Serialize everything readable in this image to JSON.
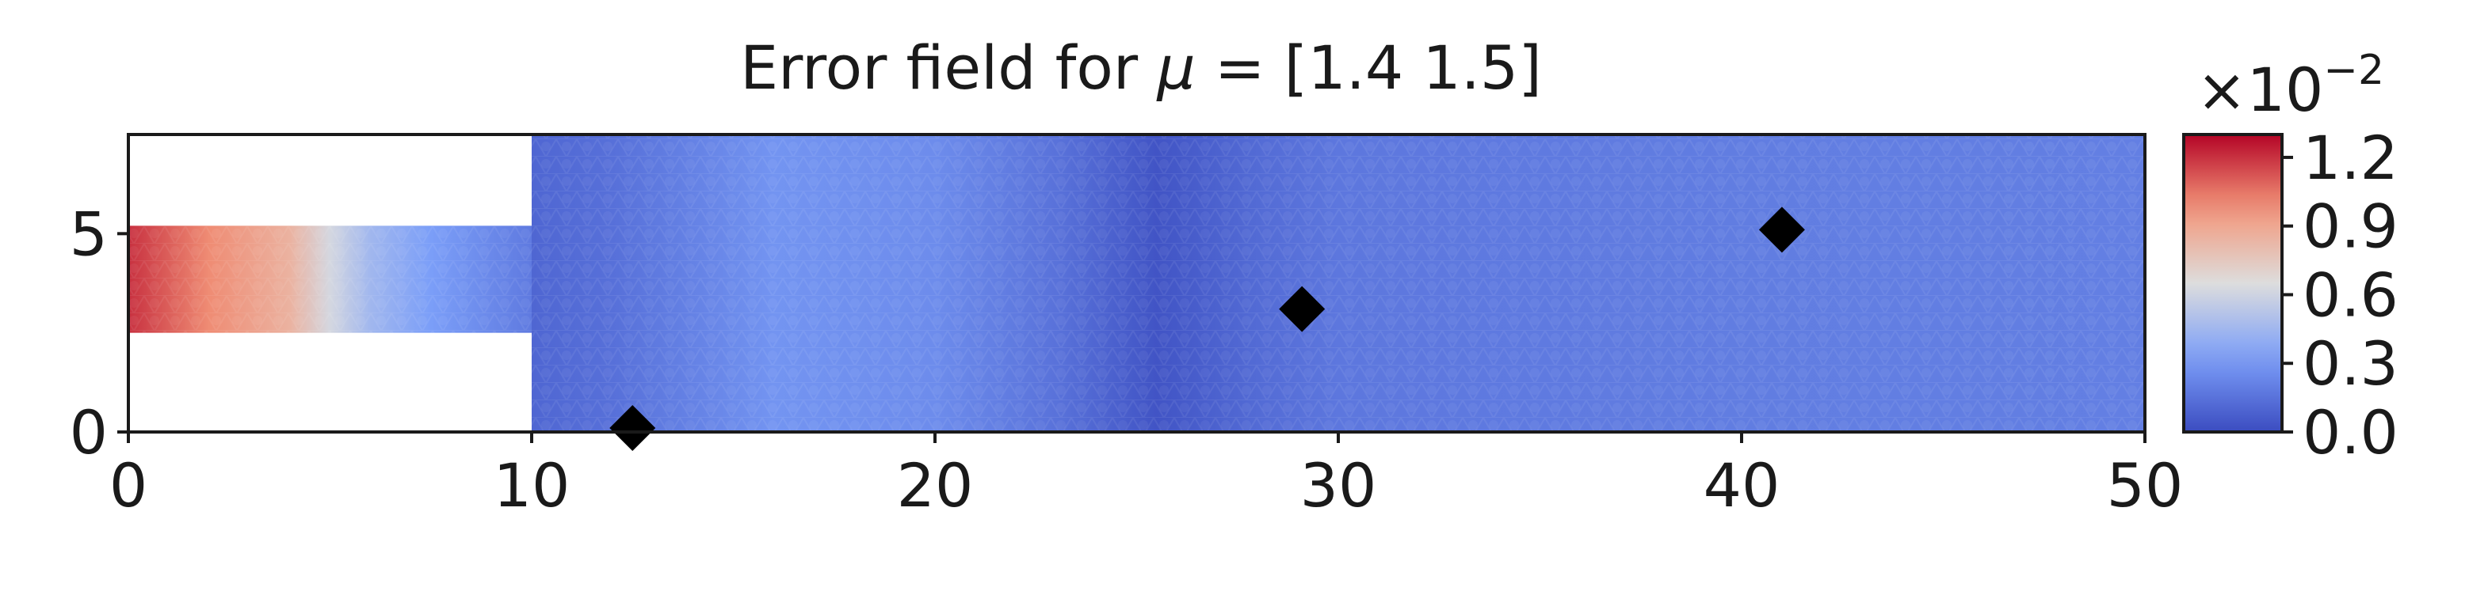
{
  "chart_data": {
    "type": "heatmap",
    "title_prefix": "Error field for ",
    "title_mu": "μ",
    "title_suffix": " = [1.4 1.5]",
    "xlim": [
      0,
      50
    ],
    "ylim": [
      0,
      7.5
    ],
    "x_ticks": [
      0,
      10,
      20,
      30,
      40,
      50
    ],
    "y_ticks": [
      0,
      5
    ],
    "domain": {
      "inlet": {
        "x": [
          0,
          10
        ],
        "y": [
          2.5,
          5.2
        ]
      },
      "channel": {
        "x": [
          10,
          50
        ],
        "y": [
          0,
          7.5
        ]
      }
    },
    "markers": [
      {
        "x": 12.5,
        "y": 0.1
      },
      {
        "x": 29.1,
        "y": 3.1
      },
      {
        "x": 41.0,
        "y": 5.1
      }
    ],
    "colorbar": {
      "colormap": "coolwarm",
      "range": [
        0.0,
        1.3
      ],
      "ticks": [
        "0.0",
        "0.3",
        "0.6",
        "0.9",
        "1.2"
      ],
      "scale_base": "×10",
      "scale_exponent": "−2"
    },
    "field_profile": {
      "inlet": [
        {
          "x": 0,
          "v": 1.2
        },
        {
          "x": 2,
          "v": 1.0
        },
        {
          "x": 4,
          "v": 0.85
        },
        {
          "x": 5,
          "v": 0.62
        },
        {
          "x": 6,
          "v": 0.45
        },
        {
          "x": 7.5,
          "v": 0.32
        },
        {
          "x": 10,
          "v": 0.18
        }
      ],
      "channel": [
        {
          "x": 10,
          "v": 0.1
        },
        {
          "x": 12,
          "v": 0.14
        },
        {
          "x": 16,
          "v": 0.28
        },
        {
          "x": 20,
          "v": 0.25
        },
        {
          "x": 23,
          "v": 0.15
        },
        {
          "x": 25.5,
          "v": 0.03
        },
        {
          "x": 28,
          "v": 0.12
        },
        {
          "x": 30,
          "v": 0.17
        },
        {
          "x": 35,
          "v": 0.18
        },
        {
          "x": 40,
          "v": 0.19
        },
        {
          "x": 50,
          "v": 0.2
        }
      ]
    }
  }
}
